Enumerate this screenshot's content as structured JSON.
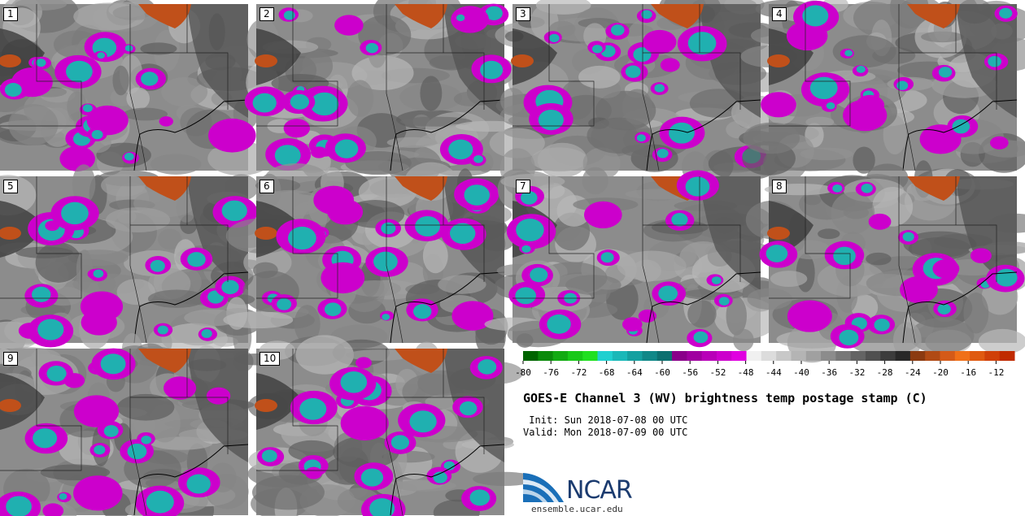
{
  "panels": [
    {
      "label": "1"
    },
    {
      "label": "2"
    },
    {
      "label": "3"
    },
    {
      "label": "4"
    },
    {
      "label": "5"
    },
    {
      "label": "6"
    },
    {
      "label": "7"
    },
    {
      "label": "8"
    },
    {
      "label": "9"
    },
    {
      "label": "10"
    }
  ],
  "colorbar": {
    "ticks": [
      "-80",
      "-76",
      "-72",
      "-68",
      "-64",
      "-60",
      "-56",
      "-52",
      "-48",
      "-44",
      "-40",
      "-36",
      "-32",
      "-28",
      "-24",
      "-20",
      "-16",
      "-12"
    ],
    "colors": [
      "#006400",
      "#0a8a0a",
      "#12aa12",
      "#18c818",
      "#20e020",
      "#20d0d0",
      "#1ab8b8",
      "#14a0a0",
      "#108888",
      "#0c7070",
      "#8a008a",
      "#a000a0",
      "#b800b8",
      "#cc00cc",
      "#e000e0",
      "#f0f0f0",
      "#dcdcdc",
      "#c8c8c8",
      "#b4b4b4",
      "#a0a0a0",
      "#8c8c8c",
      "#787878",
      "#646464",
      "#505050",
      "#3c3c3c",
      "#282828",
      "#8b3a10",
      "#b04a14",
      "#d45a18",
      "#f07018",
      "#e05a10",
      "#d04008",
      "#c02a00"
    ]
  },
  "title": "GOES-E Channel 3 (WV) brightness temp postage stamp (C)",
  "init": " Init: Sun 2018-07-08 00 UTC",
  "valid": "Valid: Mon 2018-07-09 00 UTC",
  "logo": {
    "name": "NCAR",
    "url": "ensemble.ucar.edu"
  },
  "colors": {
    "magenta": "#cc00cc",
    "cyan": "#20b0b0",
    "orange": "#c0501a",
    "gray": "#8c8c8c"
  }
}
